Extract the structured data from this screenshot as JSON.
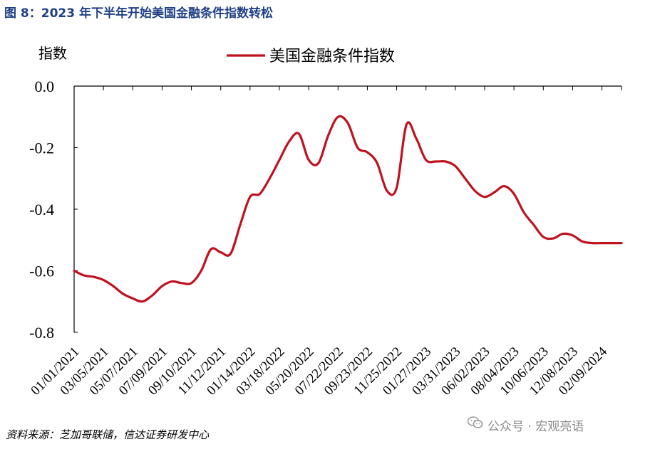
{
  "figure_title": "图 8：2023 年下半年开始美国金融条件指数转松",
  "source_note": "资料来源：芝加哥联储，信达证券研发中心",
  "watermark": "公众号 · 宏观亮语",
  "colors": {
    "line": "#c0111f",
    "title": "#1f3f86",
    "axis": "#000000"
  },
  "chart_data": {
    "type": "line",
    "ylabel": "指数",
    "ylim": [
      -0.8,
      0.0
    ],
    "yticks": [
      0.0,
      -0.2,
      -0.4,
      -0.6,
      -0.8
    ],
    "ytick_labels": [
      "0.0",
      "-0.2",
      "-0.4",
      "-0.6",
      "-0.8"
    ],
    "legend_position": "top-center",
    "grid": false,
    "xtick_labels": [
      "01/01/2021",
      "03/05/2021",
      "05/07/2021",
      "07/09/2021",
      "09/10/2021",
      "11/12/2021",
      "01/14/2022",
      "03/18/2022",
      "05/20/2022",
      "07/22/2022",
      "09/23/2022",
      "11/25/2022",
      "01/27/2023",
      "03/31/2023",
      "06/02/2023",
      "08/04/2023",
      "10/06/2023",
      "12/08/2023",
      "02/09/2024"
    ],
    "series": [
      {
        "name": "美国金融条件指数",
        "x": [
          "01/01/2021",
          "01/22/2021",
          "02/12/2021",
          "03/05/2021",
          "03/26/2021",
          "04/16/2021",
          "05/07/2021",
          "05/28/2021",
          "06/18/2021",
          "07/09/2021",
          "07/30/2021",
          "08/20/2021",
          "09/10/2021",
          "10/01/2021",
          "10/22/2021",
          "11/12/2021",
          "12/03/2021",
          "12/24/2021",
          "01/14/2022",
          "02/04/2022",
          "02/25/2022",
          "03/18/2022",
          "04/08/2022",
          "04/29/2022",
          "05/20/2022",
          "06/10/2022",
          "07/01/2022",
          "07/22/2022",
          "08/12/2022",
          "09/02/2022",
          "09/23/2022",
          "10/14/2022",
          "11/04/2022",
          "11/25/2022",
          "12/16/2022",
          "01/06/2023",
          "01/27/2023",
          "02/17/2023",
          "03/10/2023",
          "03/31/2023",
          "04/21/2023",
          "05/12/2023",
          "06/02/2023",
          "06/23/2023",
          "07/14/2023",
          "08/04/2023",
          "08/25/2023",
          "09/15/2023",
          "10/06/2023",
          "10/27/2023",
          "11/17/2023",
          "12/08/2023",
          "12/29/2023",
          "01/19/2024",
          "02/09/2024",
          "03/01/2024",
          "03/22/2024"
        ],
        "values": [
          -0.6,
          -0.615,
          -0.62,
          -0.63,
          -0.65,
          -0.675,
          -0.69,
          -0.7,
          -0.68,
          -0.65,
          -0.635,
          -0.64,
          -0.64,
          -0.6,
          -0.53,
          -0.54,
          -0.545,
          -0.45,
          -0.36,
          -0.35,
          -0.3,
          -0.24,
          -0.18,
          -0.155,
          -0.24,
          -0.25,
          -0.16,
          -0.1,
          -0.12,
          -0.2,
          -0.215,
          -0.25,
          -0.34,
          -0.33,
          -0.125,
          -0.17,
          -0.24,
          -0.245,
          -0.245,
          -0.26,
          -0.3,
          -0.34,
          -0.36,
          -0.345,
          -0.325,
          -0.35,
          -0.41,
          -0.45,
          -0.49,
          -0.495,
          -0.48,
          -0.485,
          -0.505,
          -0.51,
          -0.51,
          -0.51,
          -0.51
        ]
      }
    ]
  }
}
